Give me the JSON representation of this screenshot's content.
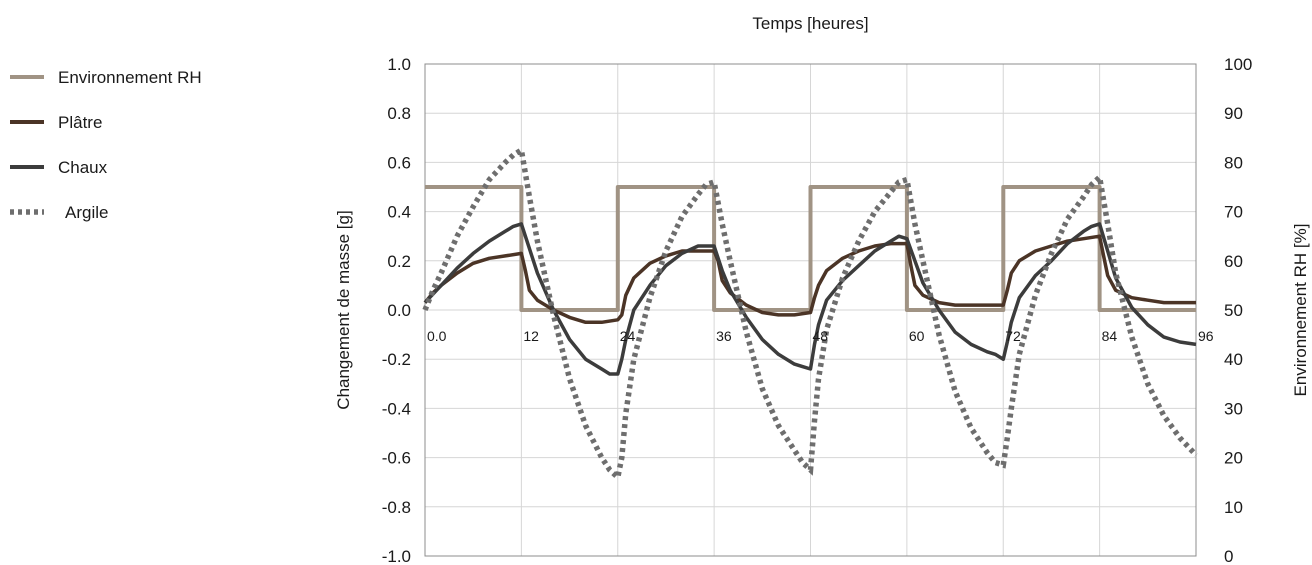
{
  "chart_data": {
    "type": "line",
    "title": "",
    "xlabel": "Temps [heures]",
    "ylabel": "Changement de masse [g]",
    "y2label": "Environnement RH [%]",
    "xlim": [
      0,
      96
    ],
    "ylim": [
      -1.0,
      1.0
    ],
    "y2lim": [
      0,
      100
    ],
    "x_ticks": [
      "0.0",
      "12",
      "24",
      "36",
      "48",
      "60",
      "72",
      "84",
      "96"
    ],
    "y_ticks": [
      "1.0",
      "0.8",
      "0.6",
      "0.4",
      "0.2",
      "0.0",
      "-0.2",
      "-0.4",
      "-0.6",
      "-0.8",
      "-1.0"
    ],
    "y2_ticks": [
      "100",
      "90",
      "80",
      "70",
      "60",
      "50",
      "40",
      "30",
      "20",
      "10",
      "0"
    ],
    "grid": true,
    "legend_position": "left",
    "series": [
      {
        "name": "Environnement RH",
        "axis": "right",
        "color": "#a09384",
        "style": "solid",
        "x": [
          0,
          12,
          12,
          24,
          24,
          36,
          36,
          48,
          48,
          60,
          60,
          72,
          72,
          84,
          84,
          96
        ],
        "y": [
          75,
          75,
          50,
          50,
          75,
          75,
          50,
          50,
          75,
          75,
          50,
          50,
          75,
          75,
          50,
          50
        ]
      },
      {
        "name": "Plâtre",
        "axis": "left",
        "color": "#4b3426",
        "style": "solid",
        "x": [
          0,
          1,
          2,
          4,
          6,
          8,
          10,
          12,
          12.5,
          13,
          14,
          16,
          18,
          20,
          22,
          24,
          24.5,
          25,
          26,
          28,
          30,
          32,
          34,
          36,
          36.5,
          37,
          38,
          40,
          42,
          44,
          46,
          48,
          48.5,
          49,
          50,
          52,
          54,
          56,
          58,
          60,
          60.5,
          61,
          62,
          64,
          66,
          68,
          70,
          72,
          72.5,
          73,
          74,
          76,
          78,
          80,
          82,
          84,
          84.5,
          85,
          86,
          88,
          90,
          92,
          94,
          96
        ],
        "y": [
          0.03,
          0.07,
          0.1,
          0.15,
          0.19,
          0.21,
          0.22,
          0.23,
          0.16,
          0.08,
          0.04,
          0.0,
          -0.03,
          -0.05,
          -0.05,
          -0.04,
          -0.02,
          0.06,
          0.13,
          0.19,
          0.22,
          0.24,
          0.24,
          0.24,
          0.2,
          0.12,
          0.07,
          0.02,
          -0.01,
          -0.02,
          -0.02,
          -0.01,
          0.05,
          0.1,
          0.16,
          0.21,
          0.24,
          0.26,
          0.27,
          0.27,
          0.18,
          0.1,
          0.06,
          0.03,
          0.02,
          0.02,
          0.02,
          0.02,
          0.08,
          0.15,
          0.2,
          0.24,
          0.26,
          0.28,
          0.29,
          0.3,
          0.22,
          0.14,
          0.08,
          0.05,
          0.04,
          0.03,
          0.03,
          0.03
        ]
      },
      {
        "name": "Chaux",
        "axis": "left",
        "color": "#3c3c3c",
        "style": "solid",
        "x": [
          0,
          2,
          4,
          6,
          8,
          10,
          11,
          12,
          13,
          14,
          16,
          18,
          20,
          22,
          23,
          24,
          24.5,
          25,
          26,
          28,
          30,
          32,
          34,
          35,
          36,
          37,
          38,
          40,
          42,
          44,
          46,
          47,
          48,
          48.5,
          49,
          50,
          52,
          54,
          56,
          58,
          59,
          60,
          61,
          62,
          64,
          66,
          68,
          70,
          71,
          72,
          72.5,
          73,
          74,
          76,
          78,
          80,
          82,
          83,
          84,
          85,
          86,
          88,
          90,
          92,
          94,
          96
        ],
        "y": [
          0.03,
          0.1,
          0.17,
          0.23,
          0.28,
          0.32,
          0.34,
          0.35,
          0.25,
          0.15,
          0.0,
          -0.12,
          -0.2,
          -0.24,
          -0.26,
          -0.26,
          -0.2,
          -0.12,
          0.0,
          0.1,
          0.18,
          0.23,
          0.26,
          0.26,
          0.26,
          0.16,
          0.08,
          -0.03,
          -0.12,
          -0.18,
          -0.22,
          -0.23,
          -0.24,
          -0.14,
          -0.06,
          0.04,
          0.12,
          0.18,
          0.24,
          0.28,
          0.3,
          0.29,
          0.2,
          0.11,
          0.0,
          -0.09,
          -0.14,
          -0.17,
          -0.18,
          -0.2,
          -0.13,
          -0.05,
          0.05,
          0.14,
          0.2,
          0.27,
          0.32,
          0.34,
          0.35,
          0.24,
          0.13,
          0.01,
          -0.06,
          -0.11,
          -0.13,
          -0.14
        ]
      },
      {
        "name": "Argile",
        "axis": "left",
        "color": "#6e6e6e",
        "style": "dotted",
        "x": [
          0,
          1,
          2,
          4,
          6,
          8,
          10,
          11,
          12,
          13,
          14,
          16,
          18,
          20,
          22,
          23,
          24,
          24.5,
          25,
          26,
          28,
          30,
          32,
          34,
          35,
          36,
          37,
          38,
          40,
          42,
          44,
          46,
          47,
          48,
          48.5,
          49,
          50,
          52,
          54,
          56,
          58,
          59,
          60,
          61,
          62,
          64,
          66,
          68,
          70,
          71,
          72,
          72.5,
          73,
          74,
          76,
          78,
          80,
          82,
          83,
          84,
          85,
          86,
          88,
          90,
          92,
          94,
          96
        ],
        "y": [
          0.0,
          0.08,
          0.15,
          0.3,
          0.42,
          0.53,
          0.6,
          0.63,
          0.65,
          0.46,
          0.28,
          -0.02,
          -0.28,
          -0.47,
          -0.6,
          -0.65,
          -0.68,
          -0.6,
          -0.42,
          -0.2,
          0.05,
          0.24,
          0.38,
          0.47,
          0.51,
          0.52,
          0.35,
          0.2,
          -0.09,
          -0.32,
          -0.47,
          -0.57,
          -0.62,
          -0.65,
          -0.45,
          -0.28,
          -0.08,
          0.13,
          0.28,
          0.4,
          0.48,
          0.52,
          0.53,
          0.35,
          0.2,
          -0.1,
          -0.33,
          -0.48,
          -0.58,
          -0.62,
          -0.63,
          -0.52,
          -0.4,
          -0.18,
          0.06,
          0.23,
          0.37,
          0.46,
          0.51,
          0.54,
          0.35,
          0.15,
          -0.11,
          -0.3,
          -0.43,
          -0.52,
          -0.59
        ]
      }
    ]
  }
}
